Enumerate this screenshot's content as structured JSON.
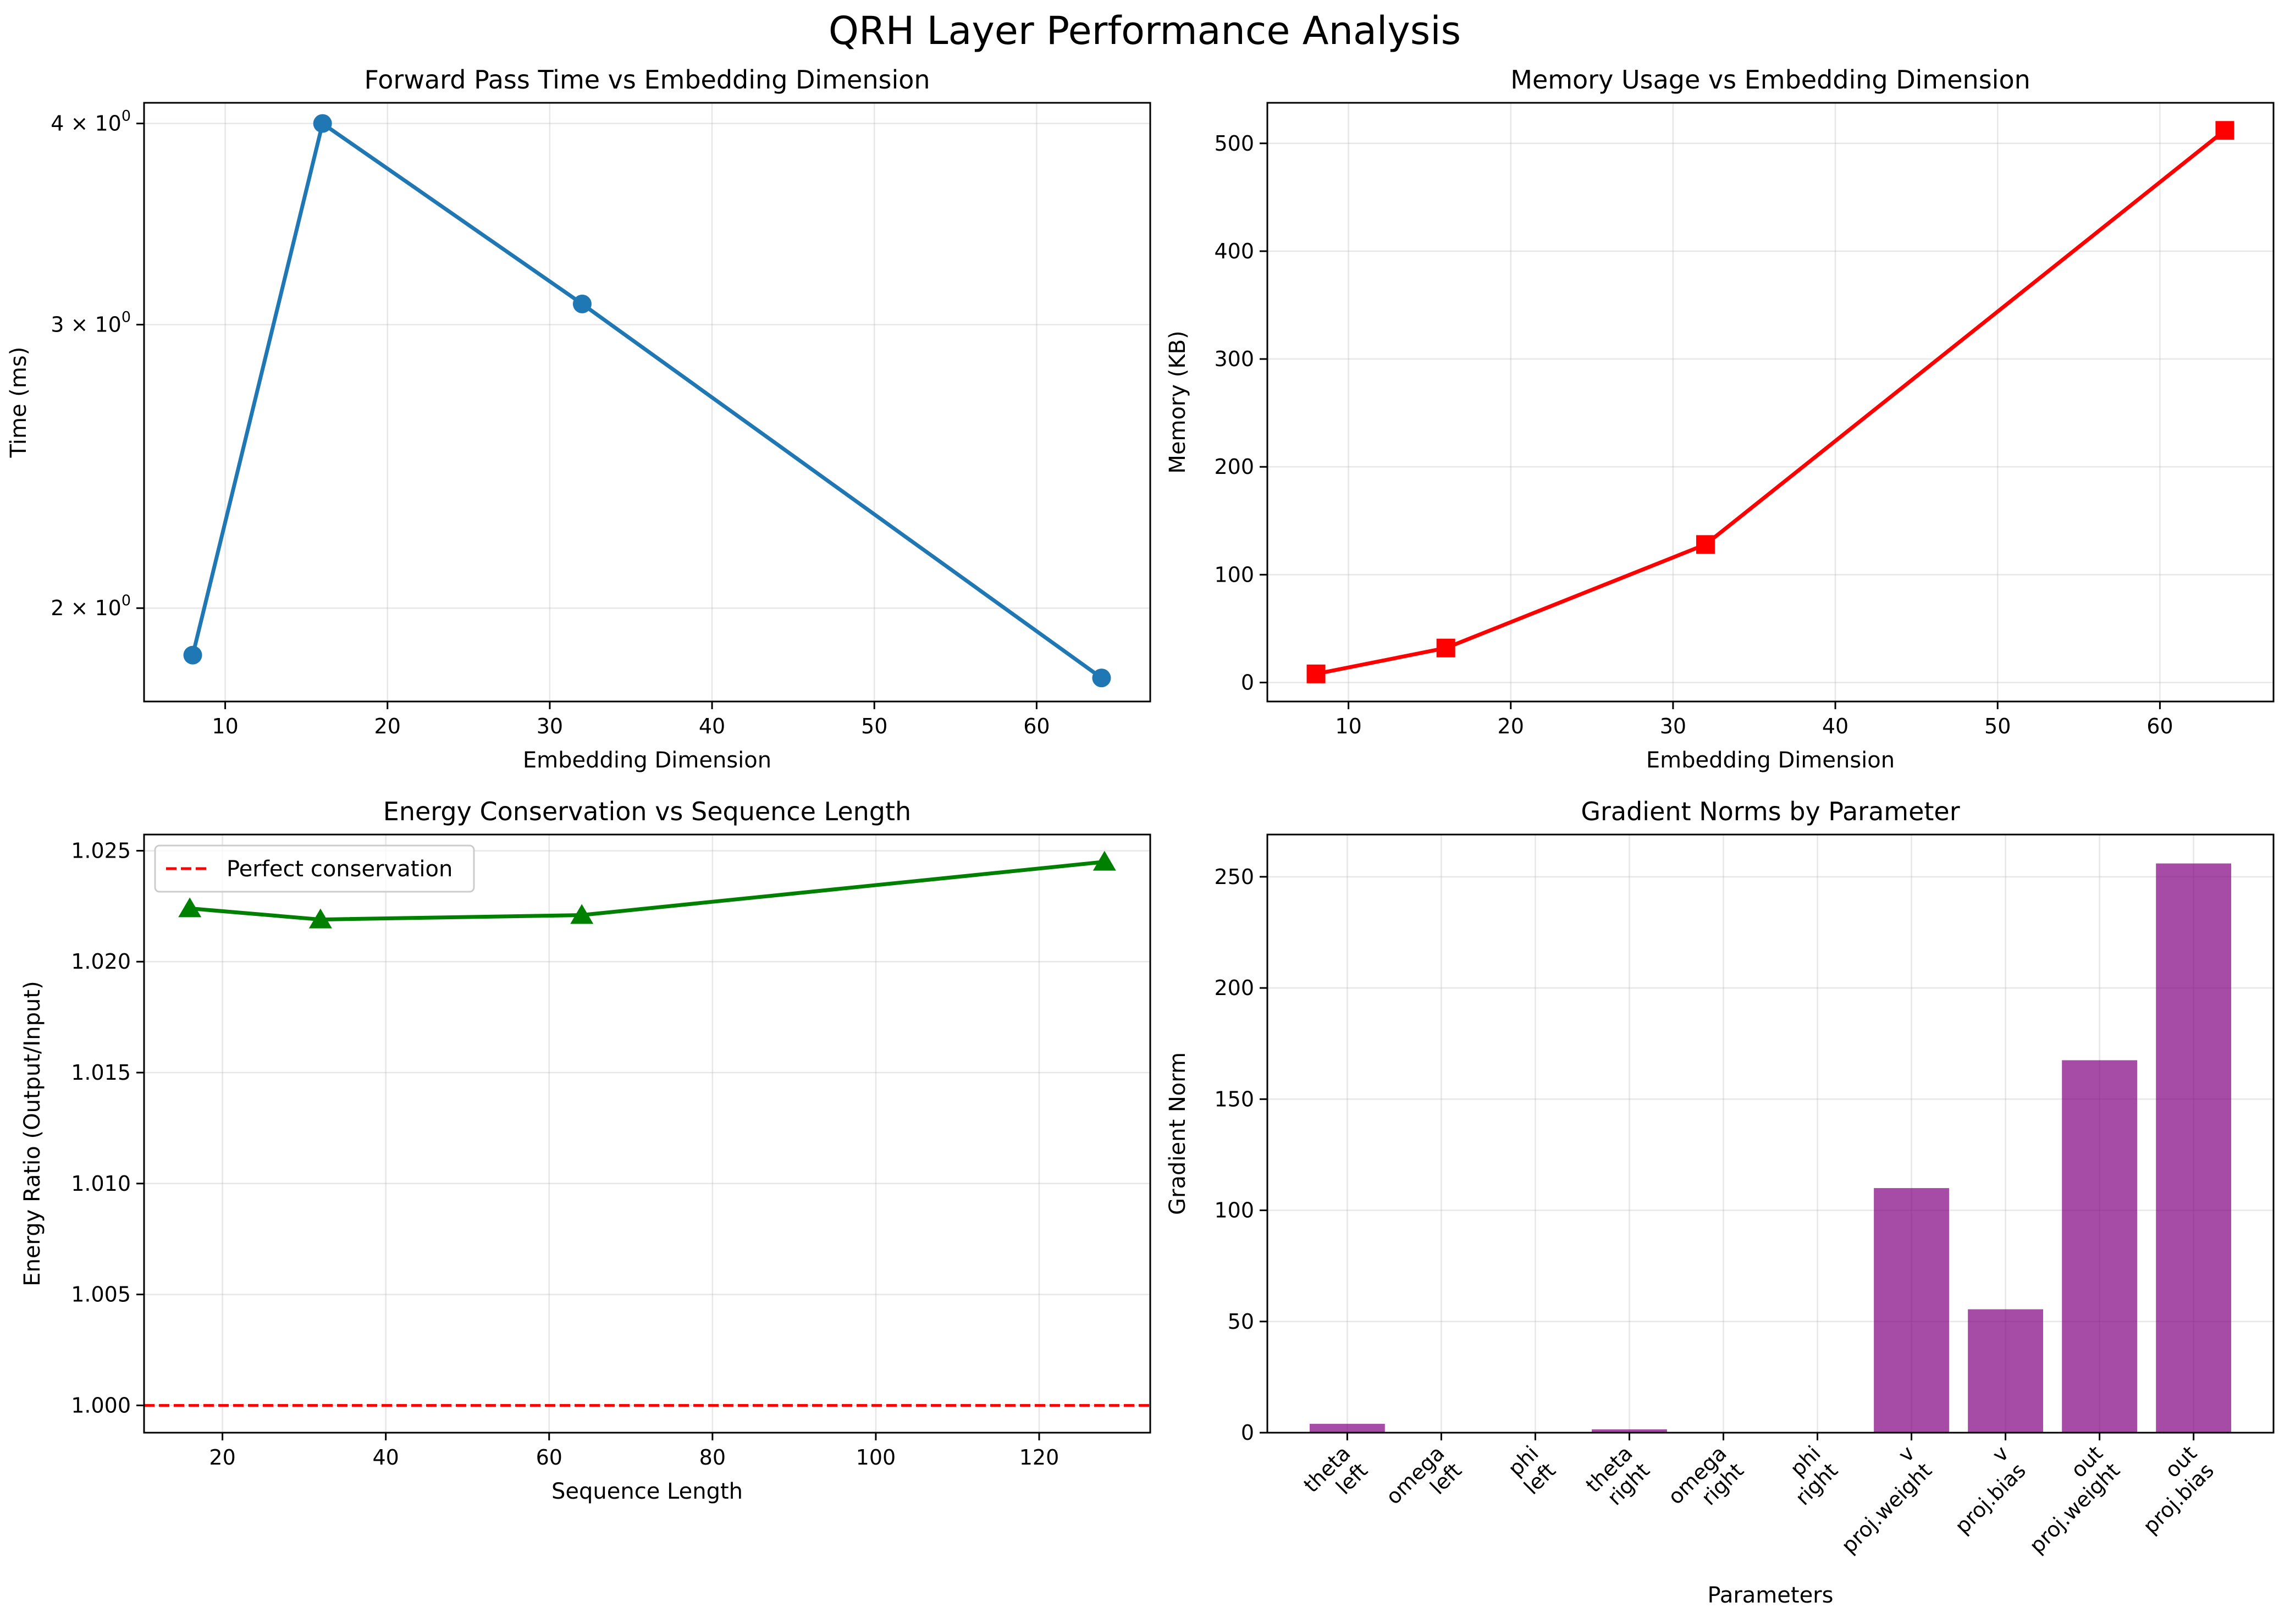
{
  "figure": {
    "title": "QRH Layer Performance Analysis"
  },
  "chart_data": [
    {
      "type": "line",
      "title": "Forward Pass Time vs Embedding Dimension",
      "xlabel": "Embedding Dimension",
      "ylabel": "Time (ms)",
      "yscale": "log",
      "xlim": [
        5,
        67
      ],
      "ylim": [
        1.75,
        4.12
      ],
      "xticks": [
        10,
        20,
        30,
        40,
        50,
        60
      ],
      "yticks": [
        {
          "value": 2,
          "mantissa": "2",
          "base": "10",
          "exp": "0"
        },
        {
          "value": 3,
          "mantissa": "3",
          "base": "10",
          "exp": "0"
        },
        {
          "value": 4,
          "mantissa": "4",
          "base": "10",
          "exp": "0"
        }
      ],
      "grid": true,
      "series": [
        {
          "color": "#1f77b4",
          "marker": "circle",
          "x": [
            8,
            16,
            32,
            64
          ],
          "y": [
            1.87,
            4.0,
            3.09,
            1.81
          ]
        }
      ]
    },
    {
      "type": "line",
      "title": "Memory Usage vs Embedding Dimension",
      "xlabel": "Embedding Dimension",
      "ylabel": "Memory (KB)",
      "xlim": [
        5,
        67
      ],
      "ylim": [
        -17.6,
        537.6
      ],
      "xticks": [
        10,
        20,
        30,
        40,
        50,
        60
      ],
      "yticks": [
        0,
        100,
        200,
        300,
        400,
        500
      ],
      "grid": true,
      "series": [
        {
          "color": "#ff0000",
          "marker": "square",
          "x": [
            8,
            16,
            32,
            64
          ],
          "y": [
            8,
            32,
            128,
            512
          ]
        }
      ]
    },
    {
      "type": "line",
      "title": "Energy Conservation vs Sequence Length",
      "xlabel": "Sequence Length",
      "ylabel": "Energy Ratio (Output/Input)",
      "xlim": [
        10.4,
        133.6
      ],
      "ylim": [
        0.99877,
        1.02573
      ],
      "xticks": [
        20,
        40,
        60,
        80,
        100,
        120
      ],
      "yticks": [
        "1.000",
        "1.005",
        "1.010",
        "1.015",
        "1.020",
        "1.025"
      ],
      "grid": true,
      "legend": {
        "position": "upper-left"
      },
      "series": [
        {
          "color": "#008000",
          "marker": "triangle",
          "x": [
            16,
            32,
            64,
            128
          ],
          "y": [
            1.0224,
            1.0219,
            1.0221,
            1.0245
          ]
        }
      ],
      "reference_line": {
        "name": "Perfect conservation",
        "y": 1.0,
        "color": "#ff0000",
        "style": "dashed"
      }
    },
    {
      "type": "bar",
      "title": "Gradient Norms by Parameter",
      "xlabel": "Parameters",
      "ylabel": "Gradient Norm",
      "ylim": [
        0,
        269
      ],
      "yticks": [
        0,
        50,
        100,
        150,
        200,
        250
      ],
      "grid": true,
      "bar_color": "#800080",
      "bar_alpha": 0.7,
      "categories": [
        [
          "theta",
          "left"
        ],
        [
          "omega",
          "left"
        ],
        [
          "phi",
          "left"
        ],
        [
          "theta",
          "right"
        ],
        [
          "omega",
          "right"
        ],
        [
          "phi",
          "right"
        ],
        [
          "v",
          "proj.weight"
        ],
        [
          "v",
          "proj.bias"
        ],
        [
          "out",
          "proj.weight"
        ],
        [
          "out",
          "proj.bias"
        ]
      ],
      "values": [
        4.0,
        0.05,
        0.05,
        1.5,
        0.05,
        0.05,
        110,
        55.5,
        167.5,
        256
      ]
    }
  ]
}
